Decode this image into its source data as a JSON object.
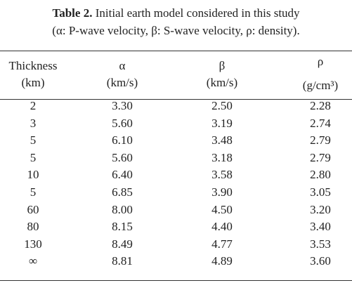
{
  "caption": {
    "label": "Table 2.",
    "title": "Initial earth model considered in this study",
    "note": "(α: P-wave velocity, β: S-wave velocity, ρ: density)."
  },
  "table": {
    "header": [
      [
        "Thickness",
        "(km)"
      ],
      [
        "α",
        "(km/s)"
      ],
      [
        "β",
        "(km/s)"
      ],
      [
        "ρ",
        "(g/cm³)"
      ]
    ],
    "rows": [
      [
        "2",
        "3.30",
        "2.50",
        "2.28"
      ],
      [
        "3",
        "5.60",
        "3.19",
        "2.74"
      ],
      [
        "5",
        "6.10",
        "3.48",
        "2.79"
      ],
      [
        "5",
        "5.60",
        "3.18",
        "2.79"
      ],
      [
        "10",
        "6.40",
        "3.58",
        "2.80"
      ],
      [
        "5",
        "6.85",
        "3.90",
        "3.05"
      ],
      [
        "60",
        "8.00",
        "4.50",
        "3.20"
      ],
      [
        "80",
        "8.15",
        "4.40",
        "3.40"
      ],
      [
        "130",
        "8.49",
        "4.77",
        "3.53"
      ],
      [
        "∞",
        "8.81",
        "4.89",
        "3.60"
      ]
    ]
  }
}
